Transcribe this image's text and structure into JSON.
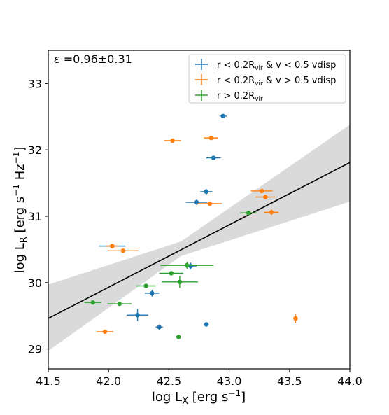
{
  "chart_data": {
    "type": "scatter",
    "annotation": {
      "symbol": "ε",
      "text": " =0.96±0.31"
    },
    "xlabel": {
      "main": "log L",
      "sub": "X",
      "unit": " [erg s",
      "unit_sup": "−1",
      "close": "]"
    },
    "ylabel": {
      "main": "log L",
      "sub": "R",
      "unit": " [erg s",
      "unit_sup1": "−1",
      "mid": " Hz",
      "unit_sup2": "−1",
      "close": "]"
    },
    "xlim": [
      41.5,
      44.0
    ],
    "ylim": [
      28.7,
      33.5
    ],
    "x_ticks": [
      "41.5",
      "42.0",
      "42.5",
      "43.0",
      "43.5",
      "44.0"
    ],
    "y_ticks": [
      "29",
      "30",
      "31",
      "32",
      "33"
    ],
    "grid": false,
    "legend_position": "top-right",
    "colors": {
      "blue": "#1f77b4",
      "orange": "#ff7f0e",
      "green": "#2ca02c",
      "fit": "#000000",
      "band": "#d3d3d3"
    },
    "fit": {
      "x": [
        41.5,
        44.0
      ],
      "y": [
        29.46,
        31.81
      ]
    },
    "band": {
      "x": [
        41.5,
        42.6,
        44.0
      ],
      "upper": [
        29.97,
        30.62,
        32.38
      ],
      "lower": [
        28.97,
        30.4,
        31.22
      ]
    },
    "series": [
      {
        "name": "r < 0.2R_vir & v < 0.5 vdisp",
        "legend": {
          "a": "r < 0.2R",
          "a_sub": "vir",
          "b": " & v < 0.5 vdisp"
        },
        "color": "#1f77b4",
        "points": [
          {
            "x": 42.95,
            "y": 32.51,
            "xerr": 0.03,
            "yerr": 0.03
          },
          {
            "x": 42.87,
            "y": 31.88,
            "xerr": 0.06,
            "yerr": 0.03
          },
          {
            "x": 42.81,
            "y": 31.37,
            "xerr": 0.05,
            "yerr": 0.04
          },
          {
            "x": 42.73,
            "y": 31.21,
            "xerr": 0.09,
            "yerr": 0.04
          },
          {
            "x": 42.03,
            "y": 30.55,
            "xerr": 0.11,
            "yerr": 0.03
          },
          {
            "x": 42.68,
            "y": 30.25,
            "xerr": 0.05,
            "yerr": 0.05
          },
          {
            "x": 42.36,
            "y": 29.84,
            "xerr": 0.06,
            "yerr": 0.05
          },
          {
            "x": 42.24,
            "y": 29.51,
            "xerr": 0.09,
            "yerr": 0.09
          },
          {
            "x": 42.42,
            "y": 29.33,
            "xerr": 0.03,
            "yerr": 0.04
          },
          {
            "x": 42.81,
            "y": 29.37,
            "xerr": 0.02,
            "yerr": 0.03
          }
        ]
      },
      {
        "name": "r < 0.2R_vir & v > 0.5 vdisp",
        "legend": {
          "a": "r < 0.2R",
          "a_sub": "vir",
          "b": " & v > 0.5 vdisp"
        },
        "color": "#ff7f0e",
        "points": [
          {
            "x": 42.85,
            "y": 32.18,
            "xerr": 0.06,
            "yerr": 0.02
          },
          {
            "x": 42.53,
            "y": 32.14,
            "xerr": 0.07,
            "yerr": 0.02
          },
          {
            "x": 43.27,
            "y": 31.38,
            "xerr": 0.09,
            "yerr": 0.02
          },
          {
            "x": 43.3,
            "y": 31.29,
            "xerr": 0.08,
            "yerr": 0.02
          },
          {
            "x": 42.84,
            "y": 31.19,
            "xerr": 0.1,
            "yerr": 0.03
          },
          {
            "x": 43.35,
            "y": 31.06,
            "xerr": 0.06,
            "yerr": 0.04
          },
          {
            "x": 42.03,
            "y": 30.55,
            "xerr": 0.05,
            "yerr": 0.02
          },
          {
            "x": 42.12,
            "y": 30.48,
            "xerr": 0.13,
            "yerr": 0.02
          },
          {
            "x": 43.55,
            "y": 29.46,
            "xerr": 0.01,
            "yerr": 0.07
          },
          {
            "x": 41.97,
            "y": 29.26,
            "xerr": 0.07,
            "yerr": 0.02
          }
        ]
      },
      {
        "name": "r > 0.2R_vir",
        "legend": {
          "a": "r > 0.2R",
          "a_sub": "vir",
          "b": ""
        },
        "color": "#2ca02c",
        "points": [
          {
            "x": 43.16,
            "y": 31.05,
            "xerr": 0.07,
            "yerr": 0.02
          },
          {
            "x": 42.65,
            "y": 30.26,
            "xerr": 0.22,
            "yerr": 0.05
          },
          {
            "x": 42.52,
            "y": 30.14,
            "xerr": 0.1,
            "yerr": 0.03
          },
          {
            "x": 42.59,
            "y": 30.01,
            "xerr": 0.15,
            "yerr": 0.09
          },
          {
            "x": 42.31,
            "y": 29.95,
            "xerr": 0.08,
            "yerr": 0.03
          },
          {
            "x": 42.09,
            "y": 29.68,
            "xerr": 0.1,
            "yerr": 0.02
          },
          {
            "x": 41.87,
            "y": 29.7,
            "xerr": 0.07,
            "yerr": 0.02
          },
          {
            "x": 42.58,
            "y": 29.18,
            "xerr": 0.01,
            "yerr": 0.02
          }
        ]
      }
    ]
  }
}
